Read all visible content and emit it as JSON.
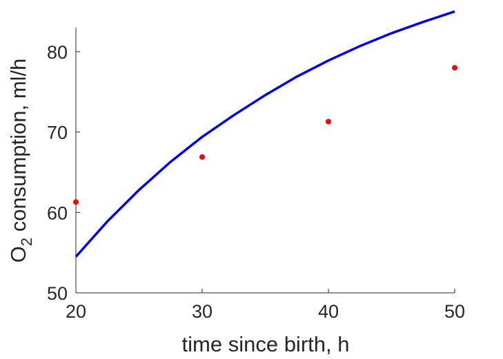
{
  "chart_data": {
    "type": "scatter",
    "title": "",
    "xlabel": "time since birth, h",
    "ylabel_main": "O",
    "ylabel_sub": "2",
    "ylabel_rest": " consumption, ml/h",
    "xlim": [
      20,
      50
    ],
    "ylim": [
      50,
      83
    ],
    "xticks": [
      20,
      30,
      40,
      50
    ],
    "yticks": [
      50,
      60,
      70,
      80
    ],
    "grid": false,
    "series": [
      {
        "kind": "line",
        "color": "#0000ff",
        "x": [
          20,
          22.5,
          25,
          27.5,
          30,
          32.5,
          35,
          37.5,
          40,
          42.5,
          45,
          47.5,
          50
        ],
        "y": [
          54.5,
          58.9,
          62.8,
          66.3,
          69.4,
          72.1,
          74.6,
          76.9,
          78.9,
          80.7,
          82.3,
          83.7,
          85.0
        ]
      },
      {
        "kind": "points",
        "color": "#ff0000",
        "x": [
          20,
          30,
          40,
          50
        ],
        "y": [
          61.3,
          66.9,
          71.3,
          78.0
        ]
      }
    ]
  }
}
